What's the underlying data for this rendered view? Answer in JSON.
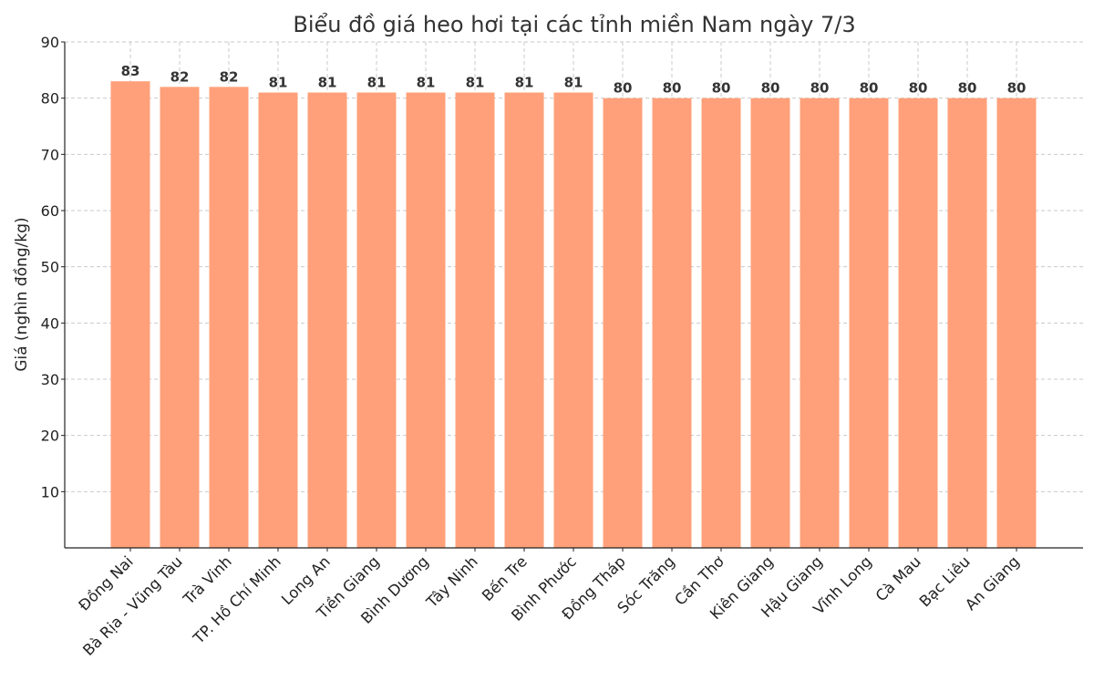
{
  "chart_data": {
    "type": "bar",
    "title": "Biểu đồ giá heo hơi tại các tỉnh miền Nam ngày 7/3",
    "xlabel": "",
    "ylabel": "Giá (nghìn đồng/kg)",
    "ylim": [
      0,
      90
    ],
    "yticks": [
      10,
      20,
      30,
      40,
      50,
      60,
      70,
      80,
      90
    ],
    "grid": true,
    "bar_color": "#FFA07A",
    "categories": [
      "Đồng Nai",
      "Bà Rịa - Vũng Tàu",
      "Trà Vinh",
      "TP. Hồ Chí Minh",
      "Long An",
      "Tiền Giang",
      "Bình Dương",
      "Tây Ninh",
      "Bến Tre",
      "Bình Phước",
      "Đồng Tháp",
      "Sóc Trăng",
      "Cần Thơ",
      "Kiên Giang",
      "Hậu Giang",
      "Vĩnh Long",
      "Cà Mau",
      "Bạc Liêu",
      "An Giang"
    ],
    "values": [
      83,
      82,
      82,
      81,
      81,
      81,
      81,
      81,
      81,
      81,
      80,
      80,
      80,
      80,
      80,
      80,
      80,
      80,
      80
    ]
  }
}
